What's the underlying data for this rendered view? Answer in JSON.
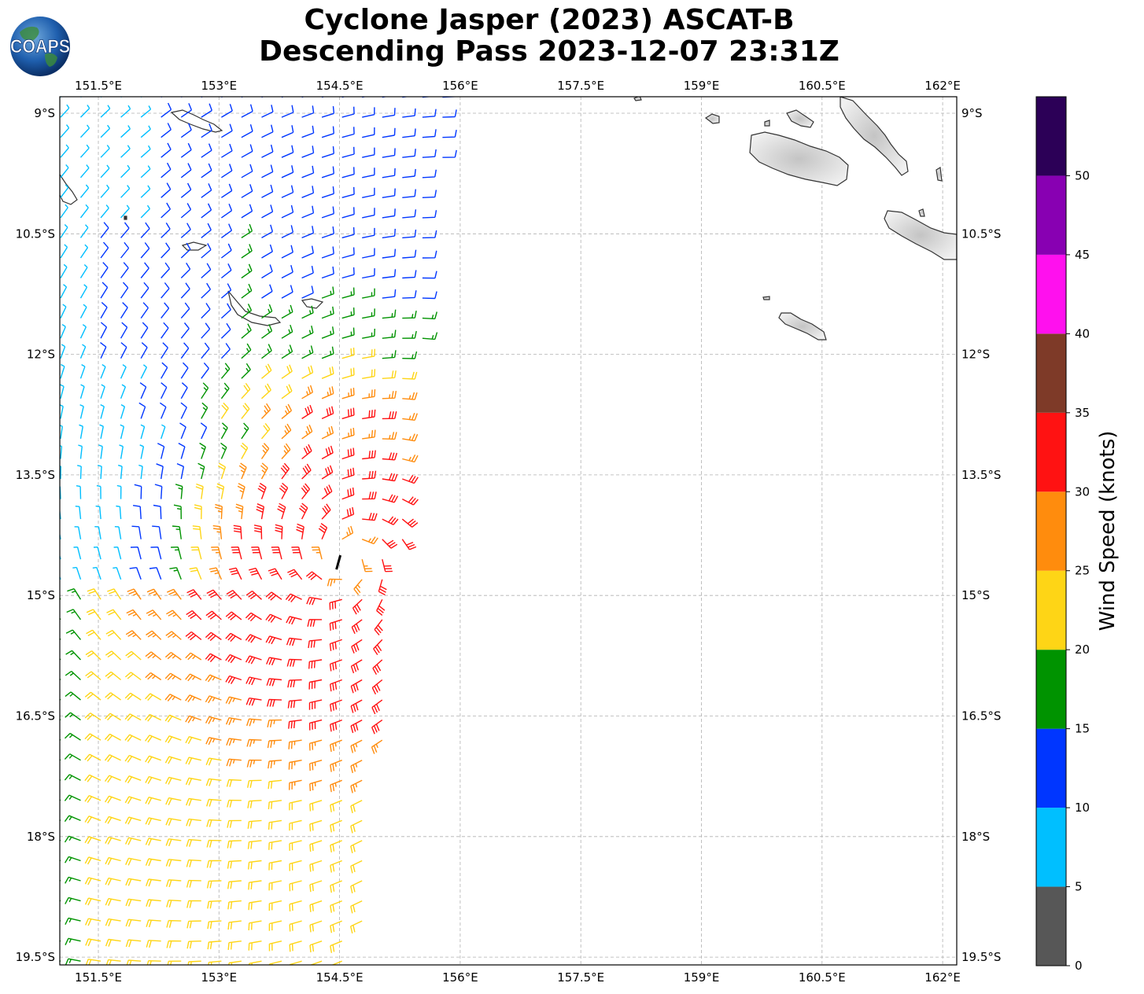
{
  "title": {
    "line1": "Cyclone Jasper (2023) ASCAT-B",
    "line2": "Descending Pass 2023-12-07 23:31Z"
  },
  "logo": {
    "text": "COAPS",
    "icon": "globe-icon"
  },
  "map": {
    "projection": "PlateCarree",
    "lon_range": [
      150.75,
      162.1
    ],
    "lat_range": [
      -19.6,
      -8.8
    ],
    "lon_ticks": [
      151.5,
      153,
      154.5,
      156,
      157.5,
      159,
      160.5,
      162
    ],
    "lon_tick_labels": [
      "151.5°E",
      "153°E",
      "154.5°E",
      "156°E",
      "157.5°E",
      "159°E",
      "160.5°E",
      "162°E"
    ],
    "lat_ticks": [
      -9,
      -10.5,
      -12,
      -13.5,
      -15,
      -16.5,
      -18,
      -19.5
    ],
    "lat_tick_labels": [
      "9°S",
      "10.5°S",
      "12°S",
      "13.5°S",
      "15°S",
      "16.5°S",
      "18°S",
      "19.5°S"
    ],
    "gridlines": true,
    "center_marker": {
      "lon": 154.5,
      "lat": -14.5
    }
  },
  "colorbar": {
    "label": "Wind Speed (knots)",
    "boundaries": [
      0,
      5,
      10,
      15,
      20,
      25,
      30,
      35,
      40,
      45,
      50,
      55
    ],
    "tick_labels": [
      "0",
      "5",
      "10",
      "15",
      "20",
      "25",
      "30",
      "35",
      "40",
      "45",
      "50"
    ],
    "colors": [
      "#575757",
      "#00bfff",
      "#0036ff",
      "#009300",
      "#fed516",
      "#ff8c0d",
      "#ff1212",
      "#7e3a28",
      "#ff10ee",
      "#8800b2",
      "#2c0057"
    ]
  },
  "colors": {
    "coastline": "#333333",
    "land_fill": "#dcdcdc",
    "grid": "#b0b0b0"
  }
}
